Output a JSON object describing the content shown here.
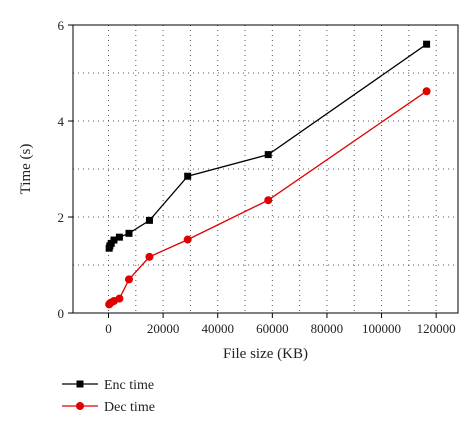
{
  "chart_data": {
    "type": "line",
    "title": "",
    "xlabel": "File size (KB)",
    "ylabel": "Time (s)",
    "xlim": [
      -13000,
      128000
    ],
    "ylim": [
      0,
      6
    ],
    "x_ticks": [
      0,
      20000,
      40000,
      60000,
      80000,
      100000,
      120000
    ],
    "x_tick_labels": [
      "0",
      "20000",
      "40000",
      "60000",
      "80000",
      "100000",
      "120000"
    ],
    "y_ticks": [
      0,
      2,
      4,
      6
    ],
    "y_tick_labels": [
      "0",
      "2",
      "4",
      "6"
    ],
    "grid": true,
    "grid_style": "dotted",
    "legend_position": "bottom-left",
    "series": [
      {
        "name": "Enc time",
        "color": "#000000",
        "marker": "square",
        "x": [
          250,
          500,
          1000,
          2000,
          4000,
          7500,
          15000,
          29000,
          58500,
          116500
        ],
        "y": [
          1.35,
          1.4,
          1.45,
          1.52,
          1.58,
          1.66,
          1.93,
          2.85,
          3.3,
          5.6
        ]
      },
      {
        "name": "Dec time",
        "color": "#e00000",
        "marker": "circle",
        "x": [
          250,
          500,
          1000,
          2000,
          4000,
          7500,
          15000,
          29000,
          58500,
          116500
        ],
        "y": [
          0.18,
          0.2,
          0.22,
          0.25,
          0.3,
          0.7,
          1.17,
          1.53,
          2.35,
          4.62
        ]
      }
    ]
  }
}
